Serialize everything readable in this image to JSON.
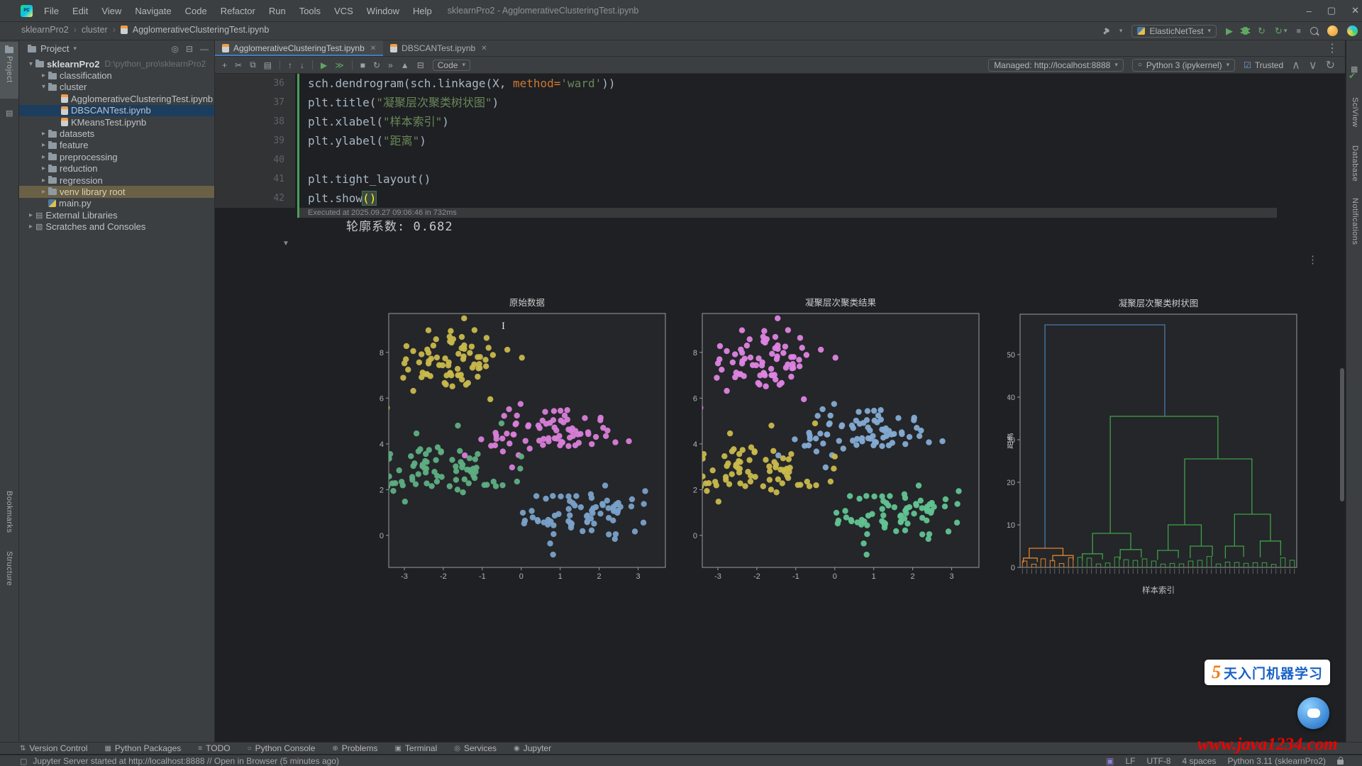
{
  "window": {
    "title": "sklearnPro2 - AgglomerativeClusteringTest.ipynb",
    "menus": [
      "File",
      "Edit",
      "View",
      "Navigate",
      "Code",
      "Refactor",
      "Run",
      "Tools",
      "VCS",
      "Window",
      "Help"
    ],
    "controls": [
      "minimize",
      "maximize",
      "close"
    ]
  },
  "main_toolbar": {
    "run_config": "ElasticNetTest"
  },
  "breadcrumbs": [
    "sklearnPro2",
    "cluster",
    "AgglomerativeClusteringTest.ipynb"
  ],
  "left_stripe": {
    "top": [
      "Project"
    ],
    "bottom": [
      "Bookmarks",
      "Structure"
    ]
  },
  "right_stripe": [
    "SciView",
    "Database",
    "Notifications"
  ],
  "project_panel": {
    "title": "Project",
    "tree": [
      {
        "d": 0,
        "icon": "folder",
        "chev": "open",
        "label": "sklearnPro2",
        "extra": "D:\\python_pro\\sklearnPro2",
        "bold": true
      },
      {
        "d": 1,
        "icon": "folder",
        "chev": "closed",
        "label": "classification"
      },
      {
        "d": 1,
        "icon": "folder",
        "chev": "open",
        "label": "cluster"
      },
      {
        "d": 2,
        "icon": "nb",
        "label": "AgglomerativeClusteringTest.ipynb"
      },
      {
        "d": 2,
        "icon": "nb",
        "label": "DBSCANTest.ipynb",
        "sel": true
      },
      {
        "d": 2,
        "icon": "nb",
        "label": "KMeansTest.ipynb"
      },
      {
        "d": 1,
        "icon": "folder",
        "chev": "closed",
        "label": "datasets"
      },
      {
        "d": 1,
        "icon": "folder",
        "chev": "closed",
        "label": "feature"
      },
      {
        "d": 1,
        "icon": "folder",
        "chev": "closed",
        "label": "preprocessing"
      },
      {
        "d": 1,
        "icon": "folder",
        "chev": "closed",
        "label": "reduction"
      },
      {
        "d": 1,
        "icon": "folder",
        "chev": "closed",
        "label": "regression"
      },
      {
        "d": 1,
        "icon": "folder",
        "chev": "closed",
        "label": "venv library root",
        "hl": true
      },
      {
        "d": 1,
        "icon": "py",
        "label": "main.py"
      },
      {
        "d": 0,
        "icon": "lib",
        "chev": "closed",
        "label": "External Libraries"
      },
      {
        "d": 0,
        "icon": "scr",
        "chev": "closed",
        "label": "Scratches and Consoles"
      }
    ]
  },
  "editor_tabs": [
    {
      "label": "AgglomerativeClusteringTest.ipynb",
      "active": true
    },
    {
      "label": "DBSCANTest.ipynb",
      "active": false
    }
  ],
  "notebook_toolbar": {
    "icons": [
      {
        "name": "add-cell-icon",
        "glyph": "+"
      },
      {
        "name": "cut-cell-icon",
        "glyph": "✂"
      },
      {
        "name": "copy-cell-icon",
        "glyph": "⧉"
      },
      {
        "name": "paste-cell-icon",
        "glyph": "▤"
      },
      {
        "sep": true
      },
      {
        "name": "move-cell-up-icon",
        "glyph": "↑"
      },
      {
        "name": "move-cell-down-icon",
        "glyph": "↓"
      },
      {
        "sep": true
      },
      {
        "name": "run-cell-icon",
        "glyph": "▶",
        "color": "#5fa762"
      },
      {
        "name": "run-all-cells-icon",
        "glyph": "≫",
        "color": "#5fa762"
      },
      {
        "sep": true
      },
      {
        "name": "stop-kernel-icon",
        "glyph": "■"
      },
      {
        "name": "restart-kernel-icon",
        "glyph": "↻"
      },
      {
        "name": "run-all-below-icon",
        "glyph": "»"
      },
      {
        "name": "step-icon",
        "glyph": "▲"
      },
      {
        "name": "delete-cell-icon",
        "glyph": "⊟"
      }
    ],
    "cell_type_label": "Code",
    "server_label": "Managed: http://localhost:8888",
    "kernel_label": "Python 3 (ipykernel)",
    "trusted_label": "Trusted"
  },
  "code": {
    "lines": [
      {
        "n": "36",
        "seg": [
          [
            "cp",
            "sch.dendrogram(sch.linkage(X, "
          ],
          [
            "ck",
            "method="
          ],
          [
            "cs",
            "'ward'"
          ],
          [
            "cp",
            "))"
          ]
        ]
      },
      {
        "n": "37",
        "seg": [
          [
            "cp",
            "plt.title("
          ],
          [
            "cs",
            "\"凝聚层次聚类树状图\""
          ],
          [
            "cp",
            ")"
          ]
        ]
      },
      {
        "n": "38",
        "seg": [
          [
            "cp",
            "plt.xlabel("
          ],
          [
            "cs",
            "\"样本索引\""
          ],
          [
            "cp",
            ")"
          ]
        ]
      },
      {
        "n": "39",
        "seg": [
          [
            "cp",
            "plt.ylabel("
          ],
          [
            "cs",
            "\"距离\""
          ],
          [
            "cp",
            ")"
          ]
        ]
      },
      {
        "n": "40",
        "seg": []
      },
      {
        "n": "41",
        "seg": [
          [
            "cp",
            "plt.tight_layout()"
          ]
        ]
      },
      {
        "n": "42",
        "seg": [
          [
            "cp",
            "plt.show"
          ],
          [
            "chl",
            "()"
          ]
        ]
      }
    ],
    "executed_note": "Executed at 2025.09.27 09:06:46 in 732ms"
  },
  "output": {
    "silhouette_text": "轮廓系数: 0.682"
  },
  "chart_data": [
    {
      "type": "scatter",
      "title": "原始数据",
      "xticks": [
        -3,
        -2,
        -1,
        0,
        1,
        2,
        3
      ],
      "yticks": [
        0,
        2,
        4,
        6,
        8
      ],
      "xlim": [
        -3.4,
        3.7
      ],
      "ylim": [
        -1.4,
        9.7
      ],
      "clusters": [
        {
          "label": "cluster-top-left",
          "color": "#c9b84c",
          "center": [
            -1.85,
            7.65
          ],
          "std": [
            0.8,
            0.75
          ],
          "n": 75
        },
        {
          "label": "cluster-center-right",
          "color": "#d97ed9",
          "center": [
            0.7,
            4.4
          ],
          "std": [
            0.85,
            0.6
          ],
          "n": 75
        },
        {
          "label": "cluster-left",
          "color": "#5fae83",
          "center": [
            -2.0,
            2.85
          ],
          "std": [
            0.8,
            0.6
          ],
          "n": 75
        },
        {
          "label": "cluster-bottom-right",
          "color": "#7aa1c9",
          "center": [
            1.65,
            0.9
          ],
          "std": [
            0.9,
            0.6
          ],
          "n": 75
        }
      ]
    },
    {
      "type": "scatter",
      "title": "凝聚层次聚类结果",
      "xticks": [
        -3,
        -2,
        -1,
        0,
        1,
        2,
        3
      ],
      "yticks": [
        0,
        2,
        4,
        6,
        8
      ],
      "xlim": [
        -3.4,
        3.7
      ],
      "ylim": [
        -1.4,
        9.7
      ],
      "clusters": [
        {
          "label": "cluster-top-left",
          "color": "#df84e3",
          "center": [
            -1.85,
            7.65
          ],
          "std": [
            0.8,
            0.75
          ],
          "n": 75
        },
        {
          "label": "cluster-center-right",
          "color": "#85abd3",
          "center": [
            0.7,
            4.4
          ],
          "std": [
            0.85,
            0.6
          ],
          "n": 75
        },
        {
          "label": "cluster-left",
          "color": "#c9b84c",
          "center": [
            -2.0,
            2.85
          ],
          "std": [
            0.8,
            0.6
          ],
          "n": 75
        },
        {
          "label": "cluster-bottom-right",
          "color": "#62c392",
          "center": [
            1.65,
            0.9
          ],
          "std": [
            0.9,
            0.6
          ],
          "n": 75
        }
      ]
    },
    {
      "type": "dendrogram",
      "title": "凝聚层次聚类树状图",
      "xlabel": "样本索引",
      "ylabel": "距离",
      "yticks": [
        0,
        10,
        20,
        30,
        40,
        50
      ],
      "ylim": [
        0,
        59.5
      ],
      "leaf_count": 60,
      "orange_fraction": 0.205,
      "colors": {
        "root": "#4b79ad",
        "green": "#3fa04a",
        "orange": "#e0852e"
      },
      "links": [
        {
          "c": "#4b79ad",
          "h": 57,
          "x1": 0.09,
          "d1": 4.5,
          "x2": 0.523,
          "d2": 35.5
        },
        {
          "c": "#3fa04a",
          "h": 35.5,
          "x1": 0.326,
          "d1": 8,
          "x2": 0.715,
          "d2": 25.5
        },
        {
          "c": "#3fa04a",
          "h": 25.5,
          "x1": 0.595,
          "d1": 10,
          "x2": 0.838,
          "d2": 12.5
        },
        {
          "c": "#3fa04a",
          "h": 8,
          "x1": 0.262,
          "d1": 3.2,
          "x2": 0.4,
          "d2": 4.2
        },
        {
          "c": "#3fa04a",
          "h": 10,
          "x1": 0.535,
          "d1": 4.0,
          "x2": 0.655,
          "d2": 5.0
        },
        {
          "c": "#3fa04a",
          "h": 12.5,
          "x1": 0.775,
          "d1": 5.0,
          "x2": 0.905,
          "d2": 6.2
        },
        {
          "c": "#3fa04a",
          "h": 4.2,
          "x1": 0.362,
          "d1": 1.9,
          "x2": 0.438,
          "d2": 2.3
        },
        {
          "c": "#3fa04a",
          "h": 3.2,
          "x1": 0.225,
          "d1": 1.6,
          "x2": 0.298,
          "d2": 1.9
        },
        {
          "c": "#3fa04a",
          "h": 5.0,
          "x1": 0.615,
          "d1": 2.2,
          "x2": 0.695,
          "d2": 2.6
        },
        {
          "c": "#3fa04a",
          "h": 4.0,
          "x1": 0.497,
          "d1": 1.8,
          "x2": 0.572,
          "d2": 2.2
        },
        {
          "c": "#3fa04a",
          "h": 6.2,
          "x1": 0.868,
          "d1": 2.4,
          "x2": 0.942,
          "d2": 2.8
        },
        {
          "c": "#3fa04a",
          "h": 5.0,
          "x1": 0.742,
          "d1": 2.1,
          "x2": 0.808,
          "d2": 2.5
        },
        {
          "c": "#e0852e",
          "h": 4.5,
          "x1": 0.033,
          "d1": 2.2,
          "x2": 0.155,
          "d2": 2.8
        },
        {
          "c": "#e0852e",
          "h": 2.8,
          "x1": 0.118,
          "d1": 1.4,
          "x2": 0.192,
          "d2": 1.7
        },
        {
          "c": "#e0852e",
          "h": 2.2,
          "x1": 0.012,
          "d1": 1.1,
          "x2": 0.062,
          "d2": 1.3
        }
      ]
    }
  ],
  "tool_buttons": [
    {
      "label": "Version Control",
      "glyph": "⇅"
    },
    {
      "label": "Python Packages",
      "glyph": "▦"
    },
    {
      "label": "TODO",
      "glyph": "≡"
    },
    {
      "label": "Python Console",
      "glyph": "○"
    },
    {
      "label": "Problems",
      "glyph": "⊕"
    },
    {
      "label": "Terminal",
      "glyph": "▣"
    },
    {
      "label": "Services",
      "glyph": "◎"
    },
    {
      "label": "Jupyter",
      "glyph": "◉"
    }
  ],
  "status_bar": {
    "message": "Jupyter Server started at http://localhost:8888 // Open in Browser (5 minutes ago)",
    "line_sep": "LF",
    "encoding": "UTF-8",
    "indent": "4 spaces",
    "interpreter": "Python 3.11 (sklearnPro2)"
  },
  "watermarks": {
    "badge_text": "5天入门机器学习",
    "site": "www.java1234.com"
  }
}
